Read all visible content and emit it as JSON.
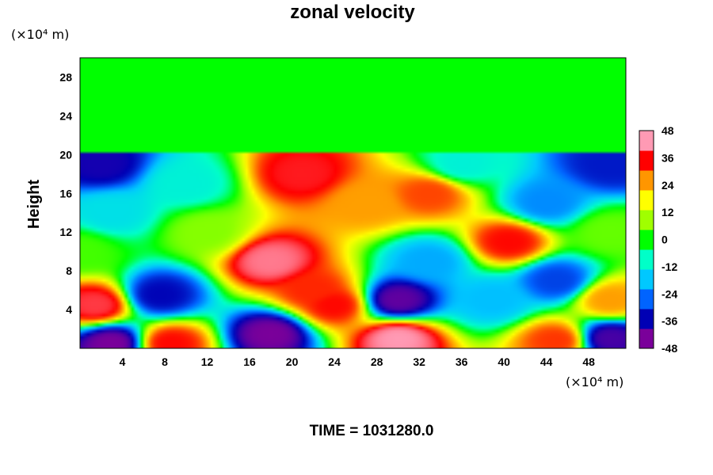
{
  "chart_data": {
    "type": "heatmap",
    "title": "zonal velocity",
    "ylabel": "Height",
    "x_unit_label": "(×10⁴ m)",
    "y_unit_label": "(×10⁴ m)",
    "xlim": [
      0,
      51.5
    ],
    "ylim": [
      0,
      30
    ],
    "x_ticks": [
      4,
      8,
      12,
      16,
      20,
      24,
      28,
      32,
      36,
      40,
      44,
      48
    ],
    "y_ticks": [
      4,
      8,
      12,
      16,
      20,
      24,
      28
    ],
    "colorbar": {
      "min": -48,
      "max": 48,
      "ticks": [
        48,
        36,
        24,
        12,
        0,
        -12,
        -24,
        -36,
        -48
      ],
      "colors": [
        "#7a009a",
        "#0000b4",
        "#0064ff",
        "#00c8ff",
        "#00ffc8",
        "#00ff00",
        "#a0ff00",
        "#ffff00",
        "#ff9600",
        "#ff0000",
        "#ff9ab4"
      ]
    },
    "field_features": [
      {
        "x": 0,
        "y": 10,
        "value": 4
      },
      {
        "x": 1.5,
        "y": 4.5,
        "value": 42
      },
      {
        "x": 2,
        "y": 19,
        "value": -40
      },
      {
        "x": 3,
        "y": 0.5,
        "value": -48
      },
      {
        "x": 3,
        "y": 14,
        "value": -15
      },
      {
        "x": 7.5,
        "y": 5.5,
        "value": -38
      },
      {
        "x": 8.5,
        "y": 0.5,
        "value": 38
      },
      {
        "x": 10,
        "y": 17,
        "value": -12
      },
      {
        "x": 12,
        "y": 12,
        "value": 8
      },
      {
        "x": 18,
        "y": 9,
        "value": 46
      },
      {
        "x": 18,
        "y": 1.5,
        "value": -48
      },
      {
        "x": 21,
        "y": 18,
        "value": 40
      },
      {
        "x": 22,
        "y": 6,
        "value": 36
      },
      {
        "x": 24,
        "y": 4.5,
        "value": 38
      },
      {
        "x": 27,
        "y": 15,
        "value": 28
      },
      {
        "x": 30,
        "y": 1,
        "value": 48
      },
      {
        "x": 30,
        "y": 5,
        "value": -46
      },
      {
        "x": 33,
        "y": 16,
        "value": 34
      },
      {
        "x": 33,
        "y": 9,
        "value": -22
      },
      {
        "x": 36,
        "y": 19,
        "value": -12
      },
      {
        "x": 39,
        "y": 5,
        "value": -20
      },
      {
        "x": 40.5,
        "y": 11,
        "value": 38
      },
      {
        "x": 44,
        "y": 15,
        "value": -25
      },
      {
        "x": 45,
        "y": 7,
        "value": -32
      },
      {
        "x": 45,
        "y": 0.8,
        "value": 35
      },
      {
        "x": 50,
        "y": 19,
        "value": -36
      },
      {
        "x": 50,
        "y": 1,
        "value": -44
      },
      {
        "x": 50,
        "y": 5,
        "value": 28
      },
      {
        "x": 50,
        "y": 12,
        "value": 6
      }
    ],
    "upper_layer": {
      "above_y": 20.2,
      "value": 0
    }
  },
  "footer": {
    "time_label": "TIME = 1031280.0"
  }
}
